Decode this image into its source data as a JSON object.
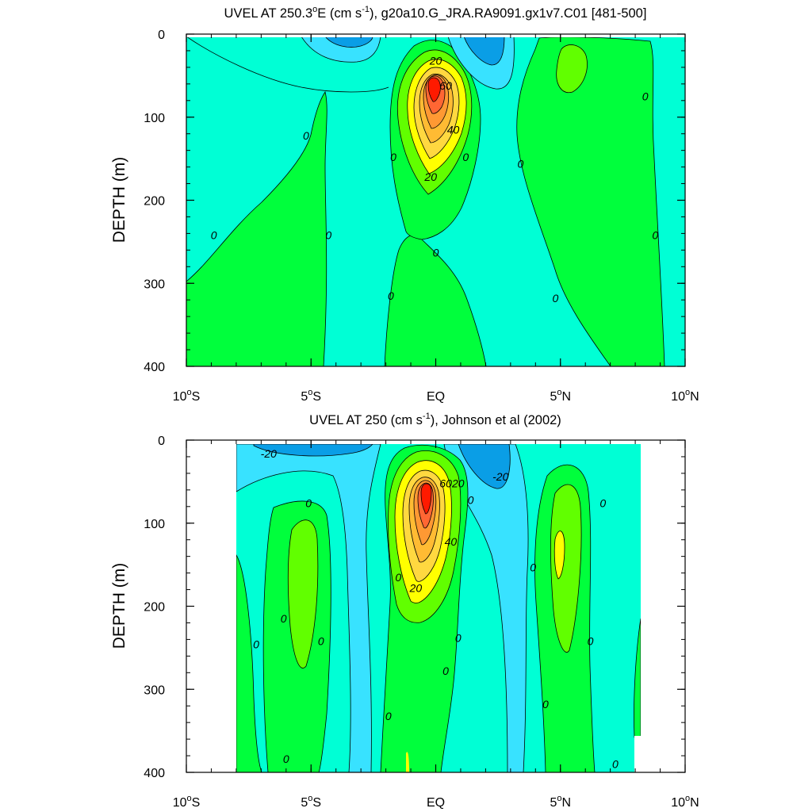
{
  "chart_data": [
    {
      "type": "contour",
      "title_main": "UVEL AT 250.3",
      "title_degree": "o",
      "title_mid": "E (cm s",
      "title_sup": "-1",
      "title_rest": "), g20a10.G_JRA.RA9091.gx1v7.C01 [481-500]",
      "ylabel": "DEPTH (m)",
      "xlim": [
        -10,
        10
      ],
      "ylim": [
        0,
        400
      ],
      "y_inverted": true,
      "x_ticks": [
        {
          "value": -10,
          "num": "10",
          "sup": "o",
          "hem": "S"
        },
        {
          "value": -5,
          "num": "5",
          "sup": "o",
          "hem": "S"
        },
        {
          "value": 0,
          "num": "EQ",
          "sup": "",
          "hem": ""
        },
        {
          "value": 5,
          "num": "5",
          "sup": "o",
          "hem": "N"
        },
        {
          "value": 10,
          "num": "10",
          "sup": "o",
          "hem": "N"
        }
      ],
      "y_ticks": [
        {
          "value": 0,
          "label": "0"
        },
        {
          "value": 100,
          "label": "100"
        },
        {
          "value": 200,
          "label": "200"
        },
        {
          "value": 300,
          "label": "300"
        },
        {
          "value": 400,
          "label": "400"
        }
      ],
      "contour_interval": 10,
      "colors": {
        "below_-20": "#0a9ee6",
        "-20_to_-10": "#38e2ff",
        "-10_to_0": "#00ffd5",
        "0_to_10": "#00ff3c",
        "10_to_20": "#61ff00",
        "20_to_30": "#ffff00",
        "30_to_40": "#ffd840",
        "40_to_50": "#ffbb33",
        "50_to_60": "#ff9933",
        "60_to_70": "#ff6633",
        "above_70": "#ff1a00"
      },
      "contour_labels": [
        {
          "x": 0,
          "y": 32,
          "text": "20"
        },
        {
          "x": 0.4,
          "y": 62,
          "text": "60"
        },
        {
          "x": 0.7,
          "y": 115,
          "text": "40"
        },
        {
          "x": -0.2,
          "y": 172,
          "text": "20"
        },
        {
          "x": -1.7,
          "y": 148,
          "text": "0"
        },
        {
          "x": 1.2,
          "y": 148,
          "text": "0"
        },
        {
          "x": 0,
          "y": 263,
          "text": "0"
        },
        {
          "x": -1.8,
          "y": 315,
          "text": "0"
        },
        {
          "x": -5.2,
          "y": 122,
          "text": "0"
        },
        {
          "x": -8.9,
          "y": 242,
          "text": "0"
        },
        {
          "x": -4.3,
          "y": 242,
          "text": "0"
        },
        {
          "x": 3.4,
          "y": 156,
          "text": "0"
        },
        {
          "x": 4.8,
          "y": 318,
          "text": "0"
        },
        {
          "x": 8.4,
          "y": 75,
          "text": "0"
        },
        {
          "x": 8.8,
          "y": 242,
          "text": "0"
        }
      ]
    },
    {
      "type": "contour",
      "title_main": "UVEL AT 250 (cm s",
      "title_degree": "",
      "title_mid": "",
      "title_sup": "-1",
      "title_rest": "), Johnson et al (2002)",
      "ylabel": "DEPTH (m)",
      "xlim": [
        -10,
        10
      ],
      "ylim": [
        0,
        400
      ],
      "y_inverted": true,
      "data_x_range": [
        -8,
        8.2
      ],
      "x_ticks": [
        {
          "value": -10,
          "num": "10",
          "sup": "o",
          "hem": "S"
        },
        {
          "value": -5,
          "num": "5",
          "sup": "o",
          "hem": "S"
        },
        {
          "value": 0,
          "num": "EQ",
          "sup": "",
          "hem": ""
        },
        {
          "value": 5,
          "num": "5",
          "sup": "o",
          "hem": "N"
        },
        {
          "value": 10,
          "num": "10",
          "sup": "o",
          "hem": "N"
        }
      ],
      "y_ticks": [
        {
          "value": 0,
          "label": "0"
        },
        {
          "value": 100,
          "label": "100"
        },
        {
          "value": 200,
          "label": "200"
        },
        {
          "value": 300,
          "label": "300"
        },
        {
          "value": 400,
          "label": "400"
        }
      ],
      "contour_interval": 10,
      "contour_labels": [
        {
          "x": -6.7,
          "y": 16,
          "text": "-20"
        },
        {
          "x": 2.6,
          "y": 44,
          "text": "-20"
        },
        {
          "x": 0.4,
          "y": 52,
          "text": "60"
        },
        {
          "x": 0.9,
          "y": 52,
          "text": "20"
        },
        {
          "x": 1.4,
          "y": 72,
          "text": "0"
        },
        {
          "x": 0.6,
          "y": 122,
          "text": "40"
        },
        {
          "x": -0.8,
          "y": 178,
          "text": "20"
        },
        {
          "x": -1.5,
          "y": 165,
          "text": "0"
        },
        {
          "x": -5.1,
          "y": 76,
          "text": "0"
        },
        {
          "x": -6.1,
          "y": 215,
          "text": "0"
        },
        {
          "x": -4.6,
          "y": 242,
          "text": "0"
        },
        {
          "x": -7.2,
          "y": 246,
          "text": "0"
        },
        {
          "x": 0.9,
          "y": 238,
          "text": "0"
        },
        {
          "x": 0.4,
          "y": 278,
          "text": "0"
        },
        {
          "x": -1.9,
          "y": 332,
          "text": "0"
        },
        {
          "x": -6.0,
          "y": 384,
          "text": "0"
        },
        {
          "x": 3.9,
          "y": 153,
          "text": "0"
        },
        {
          "x": 6.2,
          "y": 242,
          "text": "0"
        },
        {
          "x": 6.7,
          "y": 76,
          "text": "0"
        },
        {
          "x": 4.4,
          "y": 318,
          "text": "0"
        },
        {
          "x": 7.2,
          "y": 390,
          "text": "0"
        }
      ]
    }
  ]
}
